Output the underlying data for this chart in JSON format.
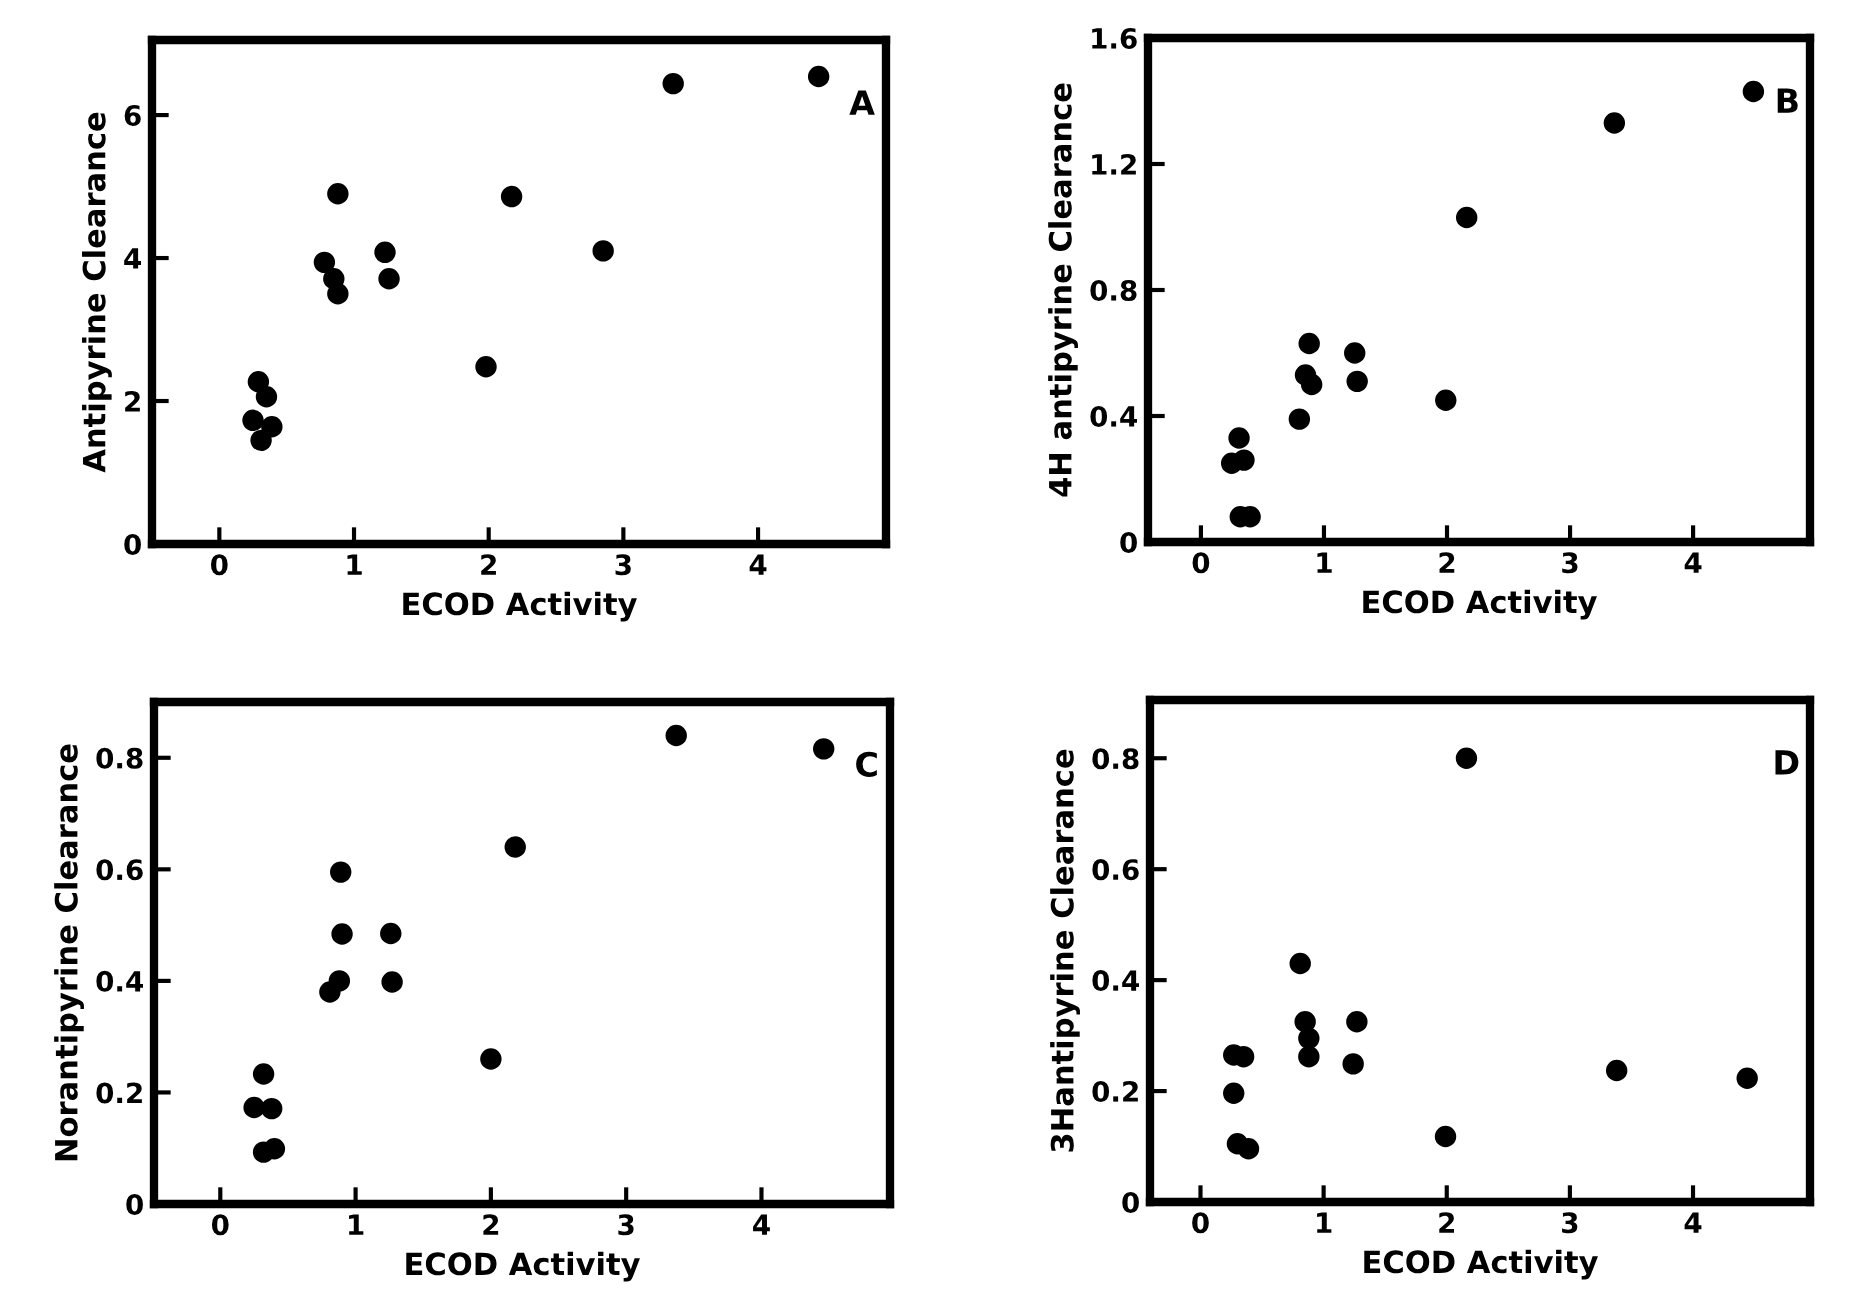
{
  "chart_data": [
    {
      "type": "scatter",
      "xlabel": "ECOD Activity",
      "ylabel": "Antipyrine Clearance",
      "annotations": [
        "A"
      ],
      "marker": "circle",
      "color": "#000000",
      "x": [
        0.25,
        0.29,
        0.35,
        0.31,
        0.39,
        0.78,
        0.85,
        0.88,
        0.88,
        1.23,
        1.26,
        1.98,
        2.17,
        2.85,
        3.37,
        4.45
      ],
      "values": [
        1.73,
        2.27,
        2.06,
        1.45,
        1.64,
        3.94,
        3.71,
        3.5,
        4.9,
        4.08,
        3.71,
        2.48,
        4.86,
        4.1,
        6.44,
        6.54
      ],
      "xlim": [
        -0.5,
        4.95
      ],
      "ylim": [
        0,
        7.05
      ],
      "xticks": [
        0,
        1,
        2,
        3,
        4
      ],
      "yticks": [
        0,
        2,
        4,
        6
      ]
    },
    {
      "type": "scatter",
      "xlabel": "ECOD Activity",
      "ylabel": "4H antipyrine Clearance",
      "annotations": [
        "B"
      ],
      "marker": "circle",
      "color": "#000000",
      "x": [
        0.25,
        0.31,
        0.35,
        0.32,
        0.4,
        0.8,
        0.85,
        0.9,
        0.88,
        1.25,
        1.27,
        1.99,
        2.16,
        3.36,
        4.49
      ],
      "values": [
        0.25,
        0.33,
        0.26,
        0.08,
        0.08,
        0.39,
        0.53,
        0.5,
        0.63,
        0.6,
        0.51,
        0.45,
        1.03,
        1.33,
        1.43
      ],
      "xlim": [
        -0.43,
        4.95
      ],
      "ylim": [
        0,
        1.6
      ],
      "xticks": [
        0,
        1,
        2,
        3,
        4
      ],
      "yticks": [
        0,
        0.4,
        0.8,
        1.2,
        1.6
      ]
    },
    {
      "type": "scatter",
      "xlabel": "ECOD Activity",
      "ylabel": "Norantipyrine Clearance",
      "annotations": [
        "C"
      ],
      "marker": "circle",
      "color": "#000000",
      "x": [
        0.25,
        0.32,
        0.38,
        0.32,
        0.4,
        0.81,
        0.88,
        0.89,
        0.9,
        1.26,
        1.27,
        2.0,
        2.18,
        3.37,
        4.46
      ],
      "values": [
        0.173,
        0.233,
        0.171,
        0.093,
        0.099,
        0.38,
        0.4,
        0.595,
        0.484,
        0.485,
        0.398,
        0.26,
        0.64,
        0.84,
        0.816
      ],
      "xlim": [
        -0.49,
        4.95
      ],
      "ylim": [
        0,
        0.9
      ],
      "xticks": [
        0,
        1,
        2,
        3,
        4
      ],
      "yticks": [
        0,
        0.2,
        0.4,
        0.6,
        0.8
      ]
    },
    {
      "type": "scatter",
      "xlabel": "ECOD Activity",
      "ylabel": "3Hantipyrine Clearance",
      "annotations": [
        "D"
      ],
      "marker": "circle",
      "color": "#000000",
      "x": [
        0.27,
        0.35,
        0.27,
        0.3,
        0.39,
        0.81,
        0.85,
        0.88,
        0.88,
        1.24,
        1.27,
        1.99,
        2.16,
        3.38,
        4.44
      ],
      "values": [
        0.265,
        0.262,
        0.196,
        0.105,
        0.096,
        0.43,
        0.325,
        0.295,
        0.262,
        0.249,
        0.325,
        0.118,
        0.8,
        0.237,
        0.223
      ],
      "xlim": [
        -0.41,
        4.95
      ],
      "ylim": [
        0,
        0.905
      ],
      "xticks": [
        0,
        1,
        2,
        3,
        4
      ],
      "yticks": [
        0,
        0.2,
        0.4,
        0.6,
        0.8
      ]
    }
  ]
}
